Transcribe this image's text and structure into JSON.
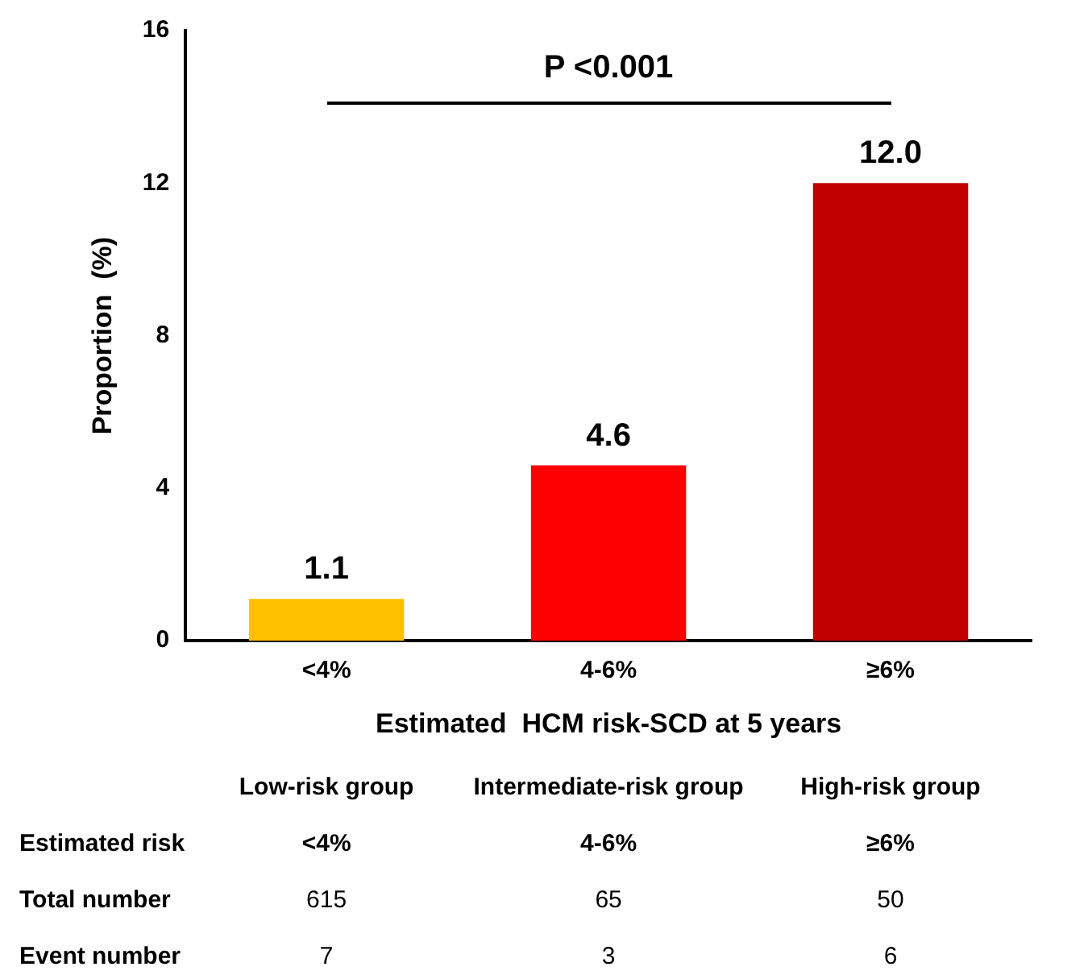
{
  "chart_data": {
    "type": "bar",
    "categories": [
      "<4%",
      "4-6%",
      "≥6%"
    ],
    "values": [
      1.1,
      4.6,
      12.0
    ],
    "colors": [
      "#ffc000",
      "#ff0000",
      "#c00000"
    ],
    "value_labels": [
      "1.1",
      "4.6",
      "12.0"
    ],
    "ylim": [
      0,
      16
    ],
    "yticks": [
      0,
      4,
      8,
      12,
      16
    ],
    "ylabel": "Proportion  (%)",
    "xlabel": "Estimated  HCM risk-SCD at 5 years",
    "grid": false,
    "legend": false,
    "annotations": [
      "P <0.001",
      "Low-risk group",
      "Intermediate-risk group",
      "High-risk group",
      "Estimated risk",
      "<4%",
      "4-6%",
      "≥6%",
      "Total number",
      "615",
      "65",
      "50",
      "Event number",
      "7",
      "3",
      "6"
    ]
  }
}
